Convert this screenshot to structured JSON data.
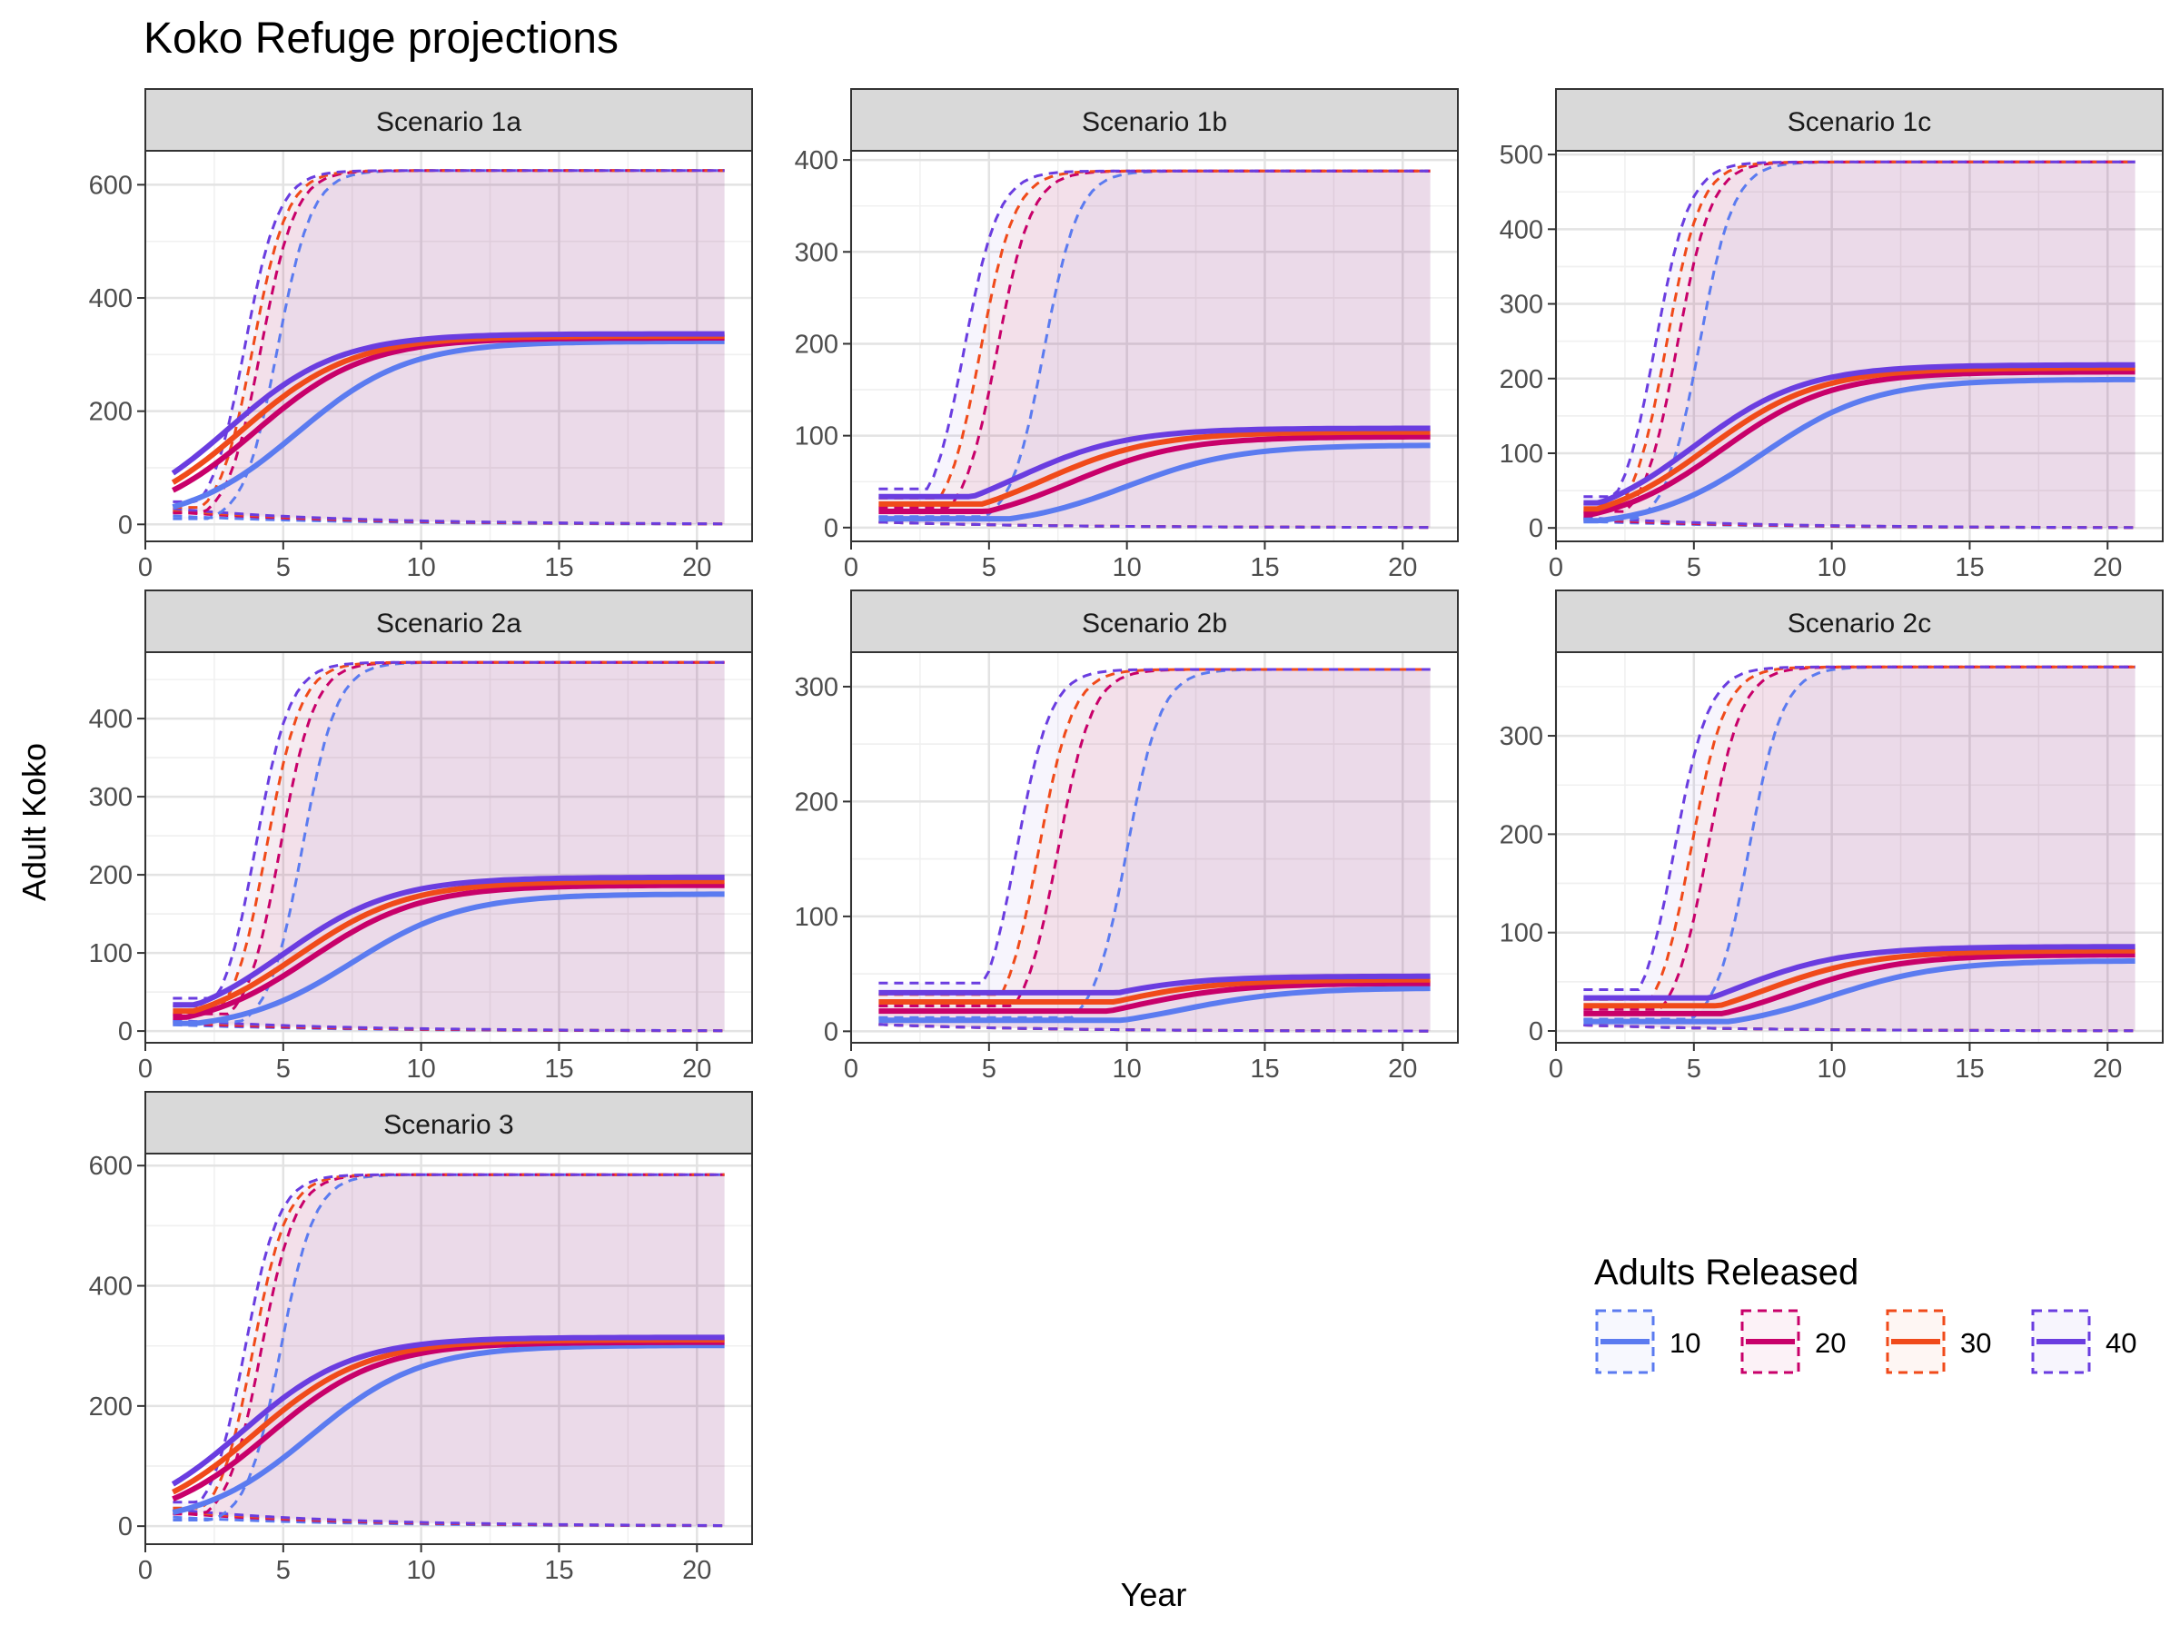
{
  "title": "Koko Refuge projections",
  "xlabel": "Year",
  "ylabel": "Adult Koko",
  "legend": {
    "title": "Adults Released",
    "placement": "bottom-right",
    "entries": [
      {
        "label": "10",
        "color": "#5B7BF0"
      },
      {
        "label": "20",
        "color": "#C8006A"
      },
      {
        "label": "30",
        "color": "#F04A1A"
      },
      {
        "label": "40",
        "color": "#6A3DE0"
      }
    ]
  },
  "chart_data": [
    {
      "type": "line",
      "facet": "Scenario 1a",
      "xlim": [
        0,
        22
      ],
      "ylim": [
        -30,
        660
      ],
      "yticks": [
        0,
        200,
        400,
        600
      ],
      "xticks": [
        0,
        5,
        10,
        15,
        20
      ],
      "K": 625,
      "Mhalf": [
        5.5,
        4.0,
        3.5,
        3.0
      ],
      "Mfinal": [
        317,
        323,
        326,
        330
      ],
      "Uhalf": [
        4.8,
        4.2,
        3.9,
        3.6
      ],
      "Ustart": [
        10,
        20,
        30,
        40
      ],
      "Lstart": [
        15,
        22,
        25,
        28
      ]
    },
    {
      "type": "line",
      "facet": "Scenario 1b",
      "xlim": [
        0,
        22
      ],
      "ylim": [
        -15,
        410
      ],
      "yticks": [
        0,
        100,
        200,
        300,
        400
      ],
      "xticks": [
        0,
        5,
        10,
        15,
        20
      ],
      "K": 388,
      "Mhalf": [
        10.0,
        8.0,
        7.0,
        6.0
      ],
      "Mfinal": [
        88,
        97,
        102,
        106
      ],
      "Uhalf": [
        7.0,
        5.3,
        4.7,
        4.1
      ],
      "Ustart": [
        12,
        22,
        32,
        42
      ],
      "Lstart": [
        6,
        6,
        6,
        6
      ]
    },
    {
      "type": "line",
      "facet": "Scenario 1c",
      "xlim": [
        0,
        22
      ],
      "ylim": [
        -18,
        505
      ],
      "yticks": [
        0,
        100,
        200,
        300,
        400,
        500
      ],
      "xticks": [
        0,
        5,
        10,
        15,
        20
      ],
      "K": 490,
      "Mhalf": [
        7.5,
        6.0,
        5.5,
        5.0
      ],
      "Mfinal": [
        195,
        205,
        210,
        214
      ],
      "Uhalf": [
        5.2,
        4.4,
        4.0,
        3.6
      ],
      "Ustart": [
        12,
        22,
        32,
        42
      ],
      "Lstart": [
        9,
        11,
        13,
        14
      ]
    },
    {
      "type": "line",
      "facet": "Scenario 2a",
      "xlim": [
        0,
        22
      ],
      "ylim": [
        -15,
        485
      ],
      "yticks": [
        0,
        100,
        200,
        300,
        400
      ],
      "xticks": [
        0,
        5,
        10,
        15,
        20
      ],
      "K": 472,
      "Mhalf": [
        7.5,
        6.0,
        5.5,
        5.0
      ],
      "Mfinal": [
        172,
        183,
        188,
        193
      ],
      "Uhalf": [
        5.7,
        4.9,
        4.4,
        4.0
      ],
      "Ustart": [
        12,
        22,
        32,
        42
      ],
      "Lstart": [
        8,
        10,
        12,
        14
      ]
    },
    {
      "type": "line",
      "facet": "Scenario 2b",
      "xlim": [
        0,
        22
      ],
      "ylim": [
        -10,
        330
      ],
      "yticks": [
        0,
        100,
        200,
        300
      ],
      "xticks": [
        0,
        5,
        10,
        15,
        20
      ],
      "K": 315,
      "Mhalf": [
        12.0,
        10.0,
        9.0,
        8.0
      ],
      "Mfinal": [
        37,
        41,
        44,
        47
      ],
      "Uhalf": [
        10.0,
        7.5,
        6.8,
        6.0
      ],
      "Ustart": [
        12,
        22,
        32,
        42
      ],
      "Lstart": [
        6,
        6,
        6,
        6
      ]
    },
    {
      "type": "line",
      "facet": "Scenario 2c",
      "xlim": [
        0,
        22
      ],
      "ylim": [
        -12,
        385
      ],
      "yticks": [
        0,
        100,
        200,
        300
      ],
      "xticks": [
        0,
        5,
        10,
        15,
        20
      ],
      "K": 370,
      "Mhalf": [
        10.0,
        8.5,
        7.5,
        6.5
      ],
      "Mfinal": [
        70,
        76,
        80,
        84
      ],
      "Uhalf": [
        7.0,
        5.5,
        4.9,
        4.3
      ],
      "Ustart": [
        12,
        22,
        32,
        42
      ],
      "Lstart": [
        6,
        6,
        6,
        6
      ]
    },
    {
      "type": "line",
      "facet": "Scenario 3",
      "xlim": [
        0,
        22
      ],
      "ylim": [
        -30,
        620
      ],
      "yticks": [
        0,
        200,
        400,
        600
      ],
      "xticks": [
        0,
        5,
        10,
        15,
        20
      ],
      "K": 585,
      "Mhalf": [
        6.0,
        4.5,
        4.0,
        3.5
      ],
      "Mfinal": [
        295,
        300,
        304,
        308
      ],
      "Uhalf": [
        4.9,
        4.2,
        3.9,
        3.6
      ],
      "Ustart": [
        10,
        20,
        30,
        40
      ],
      "Lstart": [
        15,
        22,
        25,
        28
      ]
    }
  ]
}
